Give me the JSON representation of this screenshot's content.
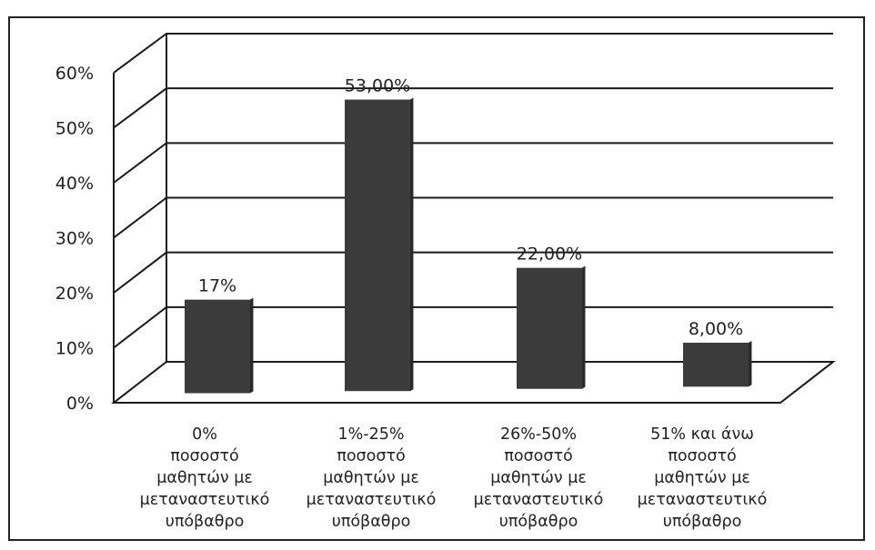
{
  "chart_data": {
    "type": "bar",
    "style": "3d-perspective-bar",
    "title": "",
    "xlabel": "",
    "ylabel": "",
    "ylim": [
      0,
      60
    ],
    "y_ticks": [
      "0%",
      "10%",
      "20%",
      "30%",
      "40%",
      "50%",
      "60%"
    ],
    "grid": true,
    "legend": "none",
    "categories": [
      [
        "0%",
        "ποσοστό",
        "μαθητών με",
        "μεταναστευτικό",
        "υπόβαθρο"
      ],
      [
        "1%-25%",
        "ποσοστό",
        "μαθητών με",
        "μεταναστευτικό",
        "υπόβαθρο"
      ],
      [
        "26%-50%",
        "ποσοστό",
        "μαθητών με",
        "μεταναστευτικό",
        "υπόβαθρο"
      ],
      [
        "51% και άνω",
        "ποσοστό",
        "μαθητών με",
        "μεταναστευτικό",
        "υπόβαθρο"
      ]
    ],
    "values": [
      17,
      53,
      22,
      8
    ],
    "data_labels": [
      "17%",
      "53,00%",
      "22,00%",
      "8,00%"
    ],
    "colors": {
      "bar": "#3b3b3b",
      "grid": "#1a1a1a",
      "text": "#222222"
    }
  }
}
